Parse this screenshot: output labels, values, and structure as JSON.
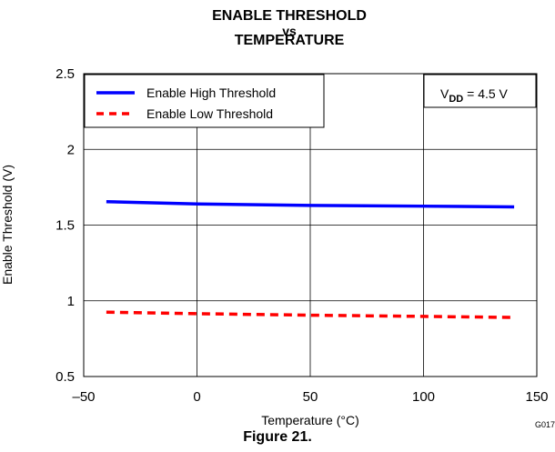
{
  "figure_label": "Figure 21.",
  "code": "G017",
  "chart_data": {
    "type": "line",
    "title": [
      "ENABLE THRESHOLD",
      "vs",
      "TEMPERATURE"
    ],
    "xlabel": "Temperature (°C)",
    "ylabel": "Enable Threshold (V)",
    "xlim": [
      -50,
      150
    ],
    "ylim": [
      0.5,
      2.5
    ],
    "xticks": [
      -50,
      0,
      50,
      100,
      150
    ],
    "xtick_labels": [
      "–50",
      "0",
      "50",
      "100",
      "150"
    ],
    "yticks": [
      0.5,
      1,
      1.5,
      2,
      2.5
    ],
    "ytick_labels": [
      "0.5",
      "1",
      "1.5",
      "2",
      "2.5"
    ],
    "grid": true,
    "legend_position": "top-left",
    "annotation": {
      "prefix": "V",
      "sub": "DD",
      "suffix": " = 4.5 V"
    },
    "series": [
      {
        "name": "Enable High Threshold",
        "color": "#0000ff",
        "style": "solid",
        "x": [
          -40,
          0,
          50,
          100,
          140
        ],
        "y": [
          1.655,
          1.64,
          1.63,
          1.625,
          1.62
        ]
      },
      {
        "name": "Enable Low Threshold",
        "color": "#ff0000",
        "style": "dashed",
        "x": [
          -40,
          0,
          50,
          100,
          140
        ],
        "y": [
          0.925,
          0.915,
          0.905,
          0.897,
          0.89
        ]
      }
    ]
  }
}
